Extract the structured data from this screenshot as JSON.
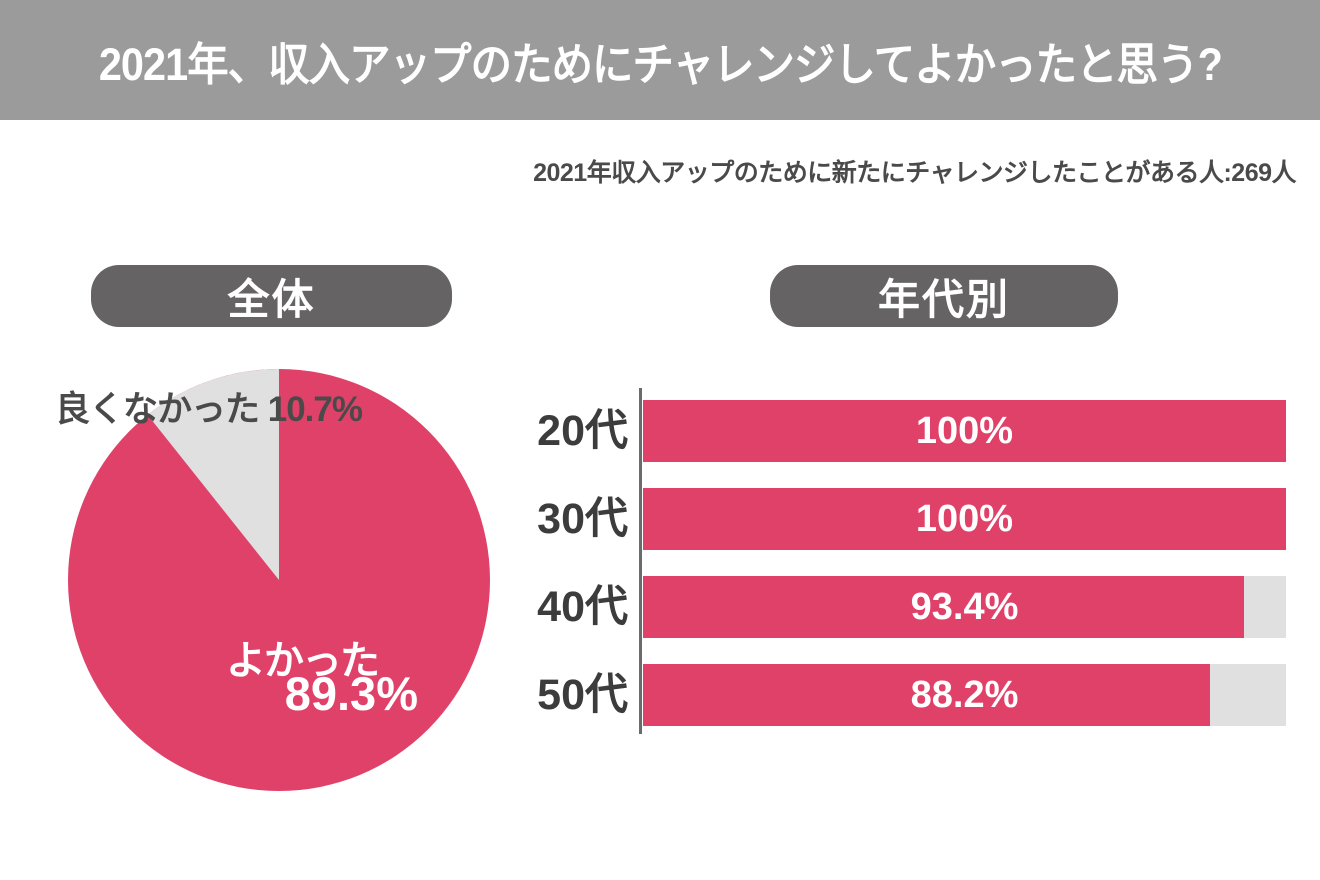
{
  "header": {
    "title": "2021年、収入アップのためにチャレンジしてよかったと思う?"
  },
  "subtitle": "2021年収入アップのために新たにチャレンジしたことがある人:269人",
  "pie_section": {
    "badge": "全体",
    "side_label": "良くなかった 10.7%",
    "main_label": "よかった",
    "main_value": "89.3%"
  },
  "bar_section": {
    "badge": "年代別",
    "rows": [
      {
        "label": "20代",
        "value": 100,
        "value_label": "100%"
      },
      {
        "label": "30代",
        "value": 100,
        "value_label": "100%"
      },
      {
        "label": "40代",
        "value": 93.4,
        "value_label": "93.4%"
      },
      {
        "label": "50代",
        "value": 88.2,
        "value_label": "88.2%"
      }
    ]
  },
  "colors": {
    "accent_pink": "#e04169",
    "light_gray": "#e0e0e0",
    "header_gray": "#9b9b9b",
    "badge_gray": "#656363",
    "dark_text": "#4a4a4a",
    "label_text": "#3c3c3c",
    "axis_gray": "#6b6b6b"
  },
  "chart_data": [
    {
      "type": "pie",
      "title": "全体",
      "labels": [
        "よかった",
        "良くなかった"
      ],
      "values": [
        89.3,
        10.7
      ],
      "colors": [
        "#e04169",
        "#e0e0e0"
      ],
      "layout": "small slice starts at 12 o'clock and sweeps counter-clockwise; labels drawn on/over the pie"
    },
    {
      "type": "bar",
      "title": "年代別",
      "orientation": "horizontal",
      "categories": [
        "20代",
        "30代",
        "40代",
        "50代"
      ],
      "values": [
        100,
        100,
        93.4,
        88.2
      ],
      "unit": "%",
      "xlim": [
        0,
        100
      ],
      "bar_labels": [
        "100%",
        "100%",
        "93.4%",
        "88.2%"
      ],
      "track_color": "#e0e0e0",
      "bar_color": "#e04169",
      "grid": false,
      "legend": "none"
    }
  ]
}
